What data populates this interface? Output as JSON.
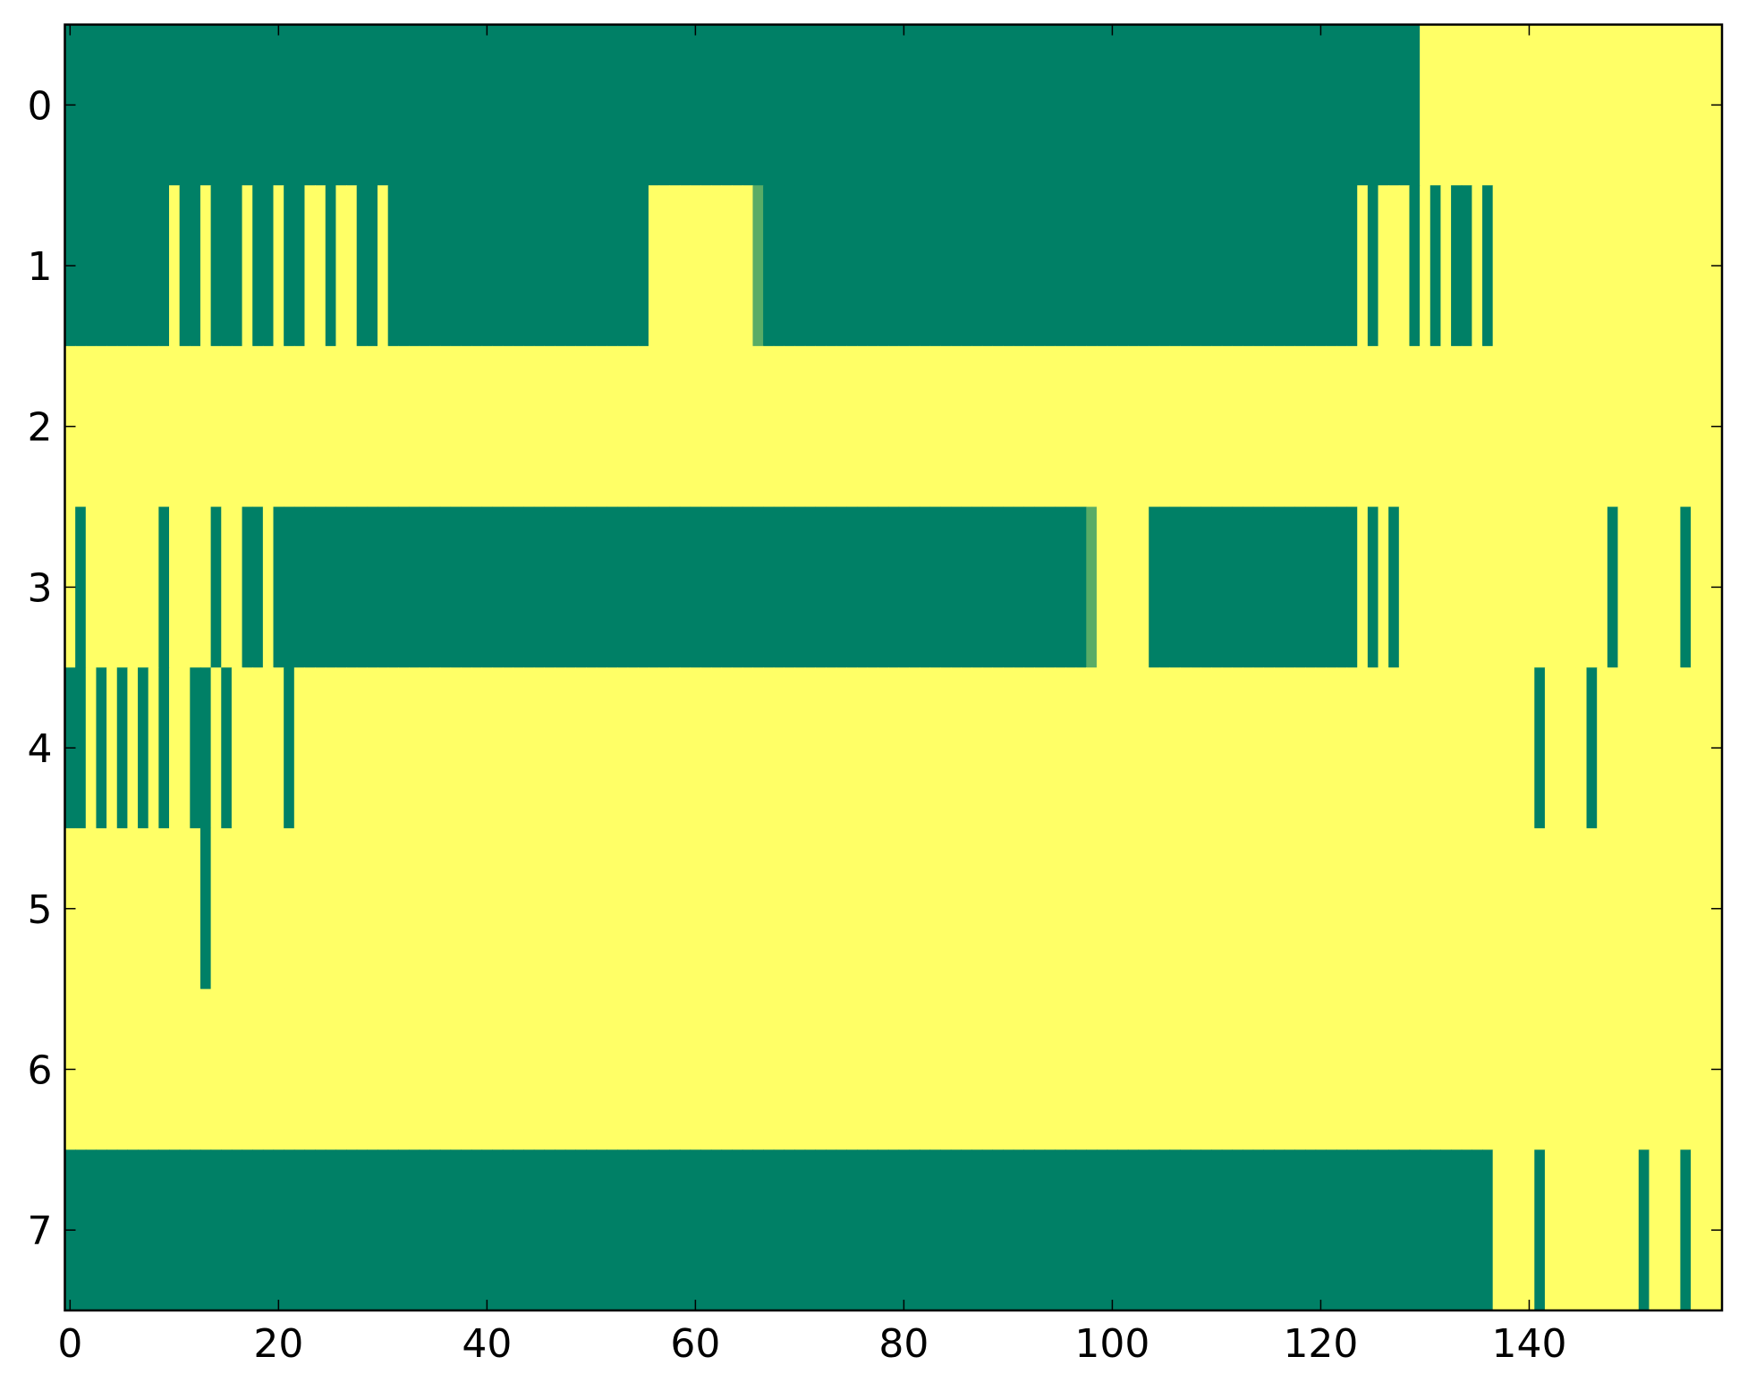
{
  "chart_data": {
    "type": "heatmap",
    "colormap": "summer",
    "zlim": [
      0,
      1
    ],
    "xlim": [
      -0.5,
      158.5
    ],
    "ylim": [
      7.5,
      -0.5
    ],
    "xticks": [
      0,
      20,
      40,
      60,
      80,
      100,
      120,
      140
    ],
    "yticks": [
      0,
      1,
      2,
      3,
      4,
      5,
      6,
      7
    ],
    "z": [
      [
        0,
        0,
        0,
        0,
        0,
        0,
        0,
        0,
        0,
        0,
        0,
        0,
        0,
        0,
        0,
        0,
        0,
        0,
        0,
        0,
        0,
        0,
        0,
        0,
        0,
        0,
        0,
        0,
        0,
        0,
        0,
        0,
        0,
        0,
        0,
        0,
        0,
        0,
        0,
        0,
        0,
        0,
        0,
        0,
        0,
        0,
        0,
        0,
        0,
        0,
        0,
        0,
        0,
        0,
        0,
        0,
        0,
        0,
        0,
        0,
        0,
        0,
        0,
        0,
        0,
        0,
        0,
        0,
        0,
        0,
        0,
        0,
        0,
        0,
        0,
        0,
        0,
        0,
        0,
        0,
        0,
        0,
        0,
        0,
        0,
        0,
        0,
        0,
        0,
        0,
        0,
        0,
        0,
        0,
        0,
        0,
        0,
        0,
        0,
        0,
        0,
        0,
        0,
        0,
        0,
        0,
        0,
        0,
        0,
        0,
        0,
        0,
        0,
        0,
        0,
        0,
        0,
        0,
        0,
        0,
        0,
        0,
        0,
        0,
        0,
        0,
        0,
        0,
        0,
        0,
        1,
        1,
        1,
        1,
        1,
        1,
        1,
        1,
        1,
        1,
        1,
        1,
        1,
        1,
        1,
        1,
        1,
        1,
        1,
        1,
        1,
        1,
        1,
        1,
        1,
        1,
        1,
        1,
        1
      ],
      [
        0,
        0,
        0,
        0,
        0,
        0,
        0,
        0,
        0,
        0,
        1,
        0,
        0,
        1,
        0,
        0,
        0,
        1,
        0,
        0,
        1,
        0,
        0,
        1,
        1,
        0,
        1,
        1,
        0,
        0,
        1,
        0,
        0,
        0,
        0,
        0,
        0,
        0,
        0,
        0,
        0,
        0,
        0,
        0,
        0,
        0,
        0,
        0,
        0,
        0,
        0,
        0,
        0,
        0,
        0,
        0,
        1,
        1,
        1,
        1,
        1,
        1,
        1,
        1,
        1,
        1,
        0.35,
        0,
        0,
        0,
        0,
        0,
        0,
        0,
        0,
        0,
        0,
        0,
        0,
        0,
        0,
        0,
        0,
        0,
        0,
        0,
        0,
        0,
        0,
        0,
        0,
        0,
        0,
        0,
        0,
        0,
        0,
        0,
        0,
        0,
        0,
        0,
        0,
        0,
        0,
        0,
        0,
        0,
        0,
        0,
        0,
        0,
        0,
        0,
        0,
        0,
        0,
        0,
        0,
        0,
        0,
        0,
        0,
        0,
        1,
        0,
        1,
        1,
        1,
        0,
        1,
        0,
        1,
        0,
        0,
        1,
        0,
        1,
        1,
        1,
        1,
        1,
        1,
        1,
        1,
        1,
        1,
        1,
        1,
        1,
        1,
        1,
        1,
        1,
        1,
        1,
        1,
        1,
        1
      ],
      [
        1,
        1,
        1,
        1,
        1,
        1,
        1,
        1,
        1,
        1,
        1,
        1,
        1,
        1,
        1,
        1,
        1,
        1,
        1,
        1,
        1,
        1,
        1,
        1,
        1,
        1,
        1,
        1,
        1,
        1,
        1,
        1,
        1,
        1,
        1,
        1,
        1,
        1,
        1,
        1,
        1,
        1,
        1,
        1,
        1,
        1,
        1,
        1,
        1,
        1,
        1,
        1,
        1,
        1,
        1,
        1,
        1,
        1,
        1,
        1,
        1,
        1,
        1,
        1,
        1,
        1,
        1,
        1,
        1,
        1,
        1,
        1,
        1,
        1,
        1,
        1,
        1,
        1,
        1,
        1,
        1,
        1,
        1,
        1,
        1,
        1,
        1,
        1,
        1,
        1,
        1,
        1,
        1,
        1,
        1,
        1,
        1,
        1,
        1,
        1,
        1,
        1,
        1,
        1,
        1,
        1,
        1,
        1,
        1,
        1,
        1,
        1,
        1,
        1,
        1,
        1,
        1,
        1,
        1,
        1,
        1,
        1,
        1,
        1,
        1,
        1,
        1,
        1,
        1,
        1,
        1,
        1,
        1,
        1,
        1,
        1,
        1,
        1,
        1,
        1,
        1,
        1,
        1,
        1,
        1,
        1,
        1,
        1,
        1,
        1,
        1,
        1,
        1,
        1,
        1,
        1,
        1,
        1,
        1
      ],
      [
        1,
        0,
        1,
        1,
        1,
        1,
        1,
        1,
        1,
        0,
        1,
        1,
        1,
        1,
        0,
        1,
        1,
        0,
        0,
        1,
        0,
        0,
        0,
        0,
        0,
        0,
        0,
        0,
        0,
        0,
        0,
        0,
        0,
        0,
        0,
        0,
        0,
        0,
        0,
        0,
        0,
        0,
        0,
        0,
        0,
        0,
        0,
        0,
        0,
        0,
        0,
        0,
        0,
        0,
        0,
        0,
        0,
        0,
        0,
        0,
        0,
        0,
        0,
        0,
        0,
        0,
        0,
        0,
        0,
        0,
        0,
        0,
        0,
        0,
        0,
        0,
        0,
        0,
        0,
        0,
        0,
        0,
        0,
        0,
        0,
        0,
        0,
        0,
        0,
        0,
        0,
        0,
        0,
        0,
        0,
        0,
        0,
        0,
        0.35,
        1,
        1,
        1,
        1,
        1,
        0,
        0,
        0,
        0,
        0,
        0,
        0,
        0,
        0,
        0,
        0,
        0,
        0,
        0,
        0,
        0,
        0,
        0,
        0,
        0,
        1,
        0,
        1,
        0,
        1,
        1,
        1,
        1,
        1,
        1,
        1,
        1,
        1,
        1,
        1,
        1,
        1,
        1,
        1,
        1,
        1,
        1,
        1,
        1,
        0,
        1,
        1,
        1,
        1,
        1,
        1,
        0,
        1,
        1,
        1
      ],
      [
        0,
        0,
        1,
        0,
        1,
        0,
        1,
        0,
        1,
        0,
        1,
        1,
        0,
        0,
        1,
        0,
        1,
        1,
        1,
        1,
        1,
        0,
        1,
        1,
        1,
        1,
        1,
        1,
        1,
        1,
        1,
        1,
        1,
        1,
        1,
        1,
        1,
        1,
        1,
        1,
        1,
        1,
        1,
        1,
        1,
        1,
        1,
        1,
        1,
        1,
        1,
        1,
        1,
        1,
        1,
        1,
        1,
        1,
        1,
        1,
        1,
        1,
        1,
        1,
        1,
        1,
        1,
        1,
        1,
        1,
        1,
        1,
        1,
        1,
        1,
        1,
        1,
        1,
        1,
        1,
        1,
        1,
        1,
        1,
        1,
        1,
        1,
        1,
        1,
        1,
        1,
        1,
        1,
        1,
        1,
        1,
        1,
        1,
        1,
        1,
        1,
        1,
        1,
        1,
        1,
        1,
        1,
        1,
        1,
        1,
        1,
        1,
        1,
        1,
        1,
        1,
        1,
        1,
        1,
        1,
        1,
        1,
        1,
        1,
        1,
        1,
        1,
        1,
        1,
        1,
        1,
        1,
        1,
        1,
        1,
        1,
        1,
        1,
        1,
        1,
        1,
        0,
        1,
        1,
        1,
        1,
        0,
        1,
        1,
        1,
        1,
        1,
        1,
        1,
        1,
        1,
        1,
        1,
        1
      ],
      [
        1,
        1,
        1,
        1,
        1,
        1,
        1,
        1,
        1,
        1,
        1,
        1,
        1,
        0,
        1,
        1,
        1,
        1,
        1,
        1,
        1,
        1,
        1,
        1,
        1,
        1,
        1,
        1,
        1,
        1,
        1,
        1,
        1,
        1,
        1,
        1,
        1,
        1,
        1,
        1,
        1,
        1,
        1,
        1,
        1,
        1,
        1,
        1,
        1,
        1,
        1,
        1,
        1,
        1,
        1,
        1,
        1,
        1,
        1,
        1,
        1,
        1,
        1,
        1,
        1,
        1,
        1,
        1,
        1,
        1,
        1,
        1,
        1,
        1,
        1,
        1,
        1,
        1,
        1,
        1,
        1,
        1,
        1,
        1,
        1,
        1,
        1,
        1,
        1,
        1,
        1,
        1,
        1,
        1,
        1,
        1,
        1,
        1,
        1,
        1,
        1,
        1,
        1,
        1,
        1,
        1,
        1,
        1,
        1,
        1,
        1,
        1,
        1,
        1,
        1,
        1,
        1,
        1,
        1,
        1,
        1,
        1,
        1,
        1,
        1,
        1,
        1,
        1,
        1,
        1,
        1,
        1,
        1,
        1,
        1,
        1,
        1,
        1,
        1,
        1,
        1,
        1,
        1,
        1,
        1,
        1,
        1,
        1,
        1,
        1,
        1,
        1,
        1,
        1,
        1,
        1,
        1,
        1,
        1
      ],
      [
        1,
        1,
        1,
        1,
        1,
        1,
        1,
        1,
        1,
        1,
        1,
        1,
        1,
        1,
        1,
        1,
        1,
        1,
        1,
        1,
        1,
        1,
        1,
        1,
        1,
        1,
        1,
        1,
        1,
        1,
        1,
        1,
        1,
        1,
        1,
        1,
        1,
        1,
        1,
        1,
        1,
        1,
        1,
        1,
        1,
        1,
        1,
        1,
        1,
        1,
        1,
        1,
        1,
        1,
        1,
        1,
        1,
        1,
        1,
        1,
        1,
        1,
        1,
        1,
        1,
        1,
        1,
        1,
        1,
        1,
        1,
        1,
        1,
        1,
        1,
        1,
        1,
        1,
        1,
        1,
        1,
        1,
        1,
        1,
        1,
        1,
        1,
        1,
        1,
        1,
        1,
        1,
        1,
        1,
        1,
        1,
        1,
        1,
        1,
        1,
        1,
        1,
        1,
        1,
        1,
        1,
        1,
        1,
        1,
        1,
        1,
        1,
        1,
        1,
        1,
        1,
        1,
        1,
        1,
        1,
        1,
        1,
        1,
        1,
        1,
        1,
        1,
        1,
        1,
        1,
        1,
        1,
        1,
        1,
        1,
        1,
        1,
        1,
        1,
        1,
        1,
        1,
        1,
        1,
        1,
        1,
        1,
        1,
        1,
        1,
        1,
        1,
        1,
        1,
        1,
        1,
        1,
        1,
        1
      ],
      [
        0,
        0,
        0,
        0,
        0,
        0,
        0,
        0,
        0,
        0,
        0,
        0,
        0,
        0,
        0,
        0,
        0,
        0,
        0,
        0,
        0,
        0,
        0,
        0,
        0,
        0,
        0,
        0,
        0,
        0,
        0,
        0,
        0,
        0,
        0,
        0,
        0,
        0,
        0,
        0,
        0,
        0,
        0,
        0,
        0,
        0,
        0,
        0,
        0,
        0,
        0,
        0,
        0,
        0,
        0,
        0,
        0,
        0,
        0,
        0,
        0,
        0,
        0,
        0,
        0,
        0,
        0,
        0,
        0,
        0,
        0,
        0,
        0,
        0,
        0,
        0,
        0,
        0,
        0,
        0,
        0,
        0,
        0,
        0,
        0,
        0,
        0,
        0,
        0,
        0,
        0,
        0,
        0,
        0,
        0,
        0,
        0,
        0,
        0,
        0,
        0,
        0,
        0,
        0,
        0,
        0,
        0,
        0,
        0,
        0,
        0,
        0,
        0,
        0,
        0,
        0,
        0,
        0,
        0,
        0,
        0,
        0,
        0,
        0,
        0,
        0,
        0,
        0,
        0,
        0,
        0,
        0,
        0,
        0,
        0,
        0,
        0,
        1,
        1,
        1,
        1,
        0,
        1,
        1,
        1,
        1,
        1,
        1,
        1,
        1,
        1,
        0,
        1,
        1,
        1,
        0,
        1,
        1,
        1
      ]
    ]
  }
}
